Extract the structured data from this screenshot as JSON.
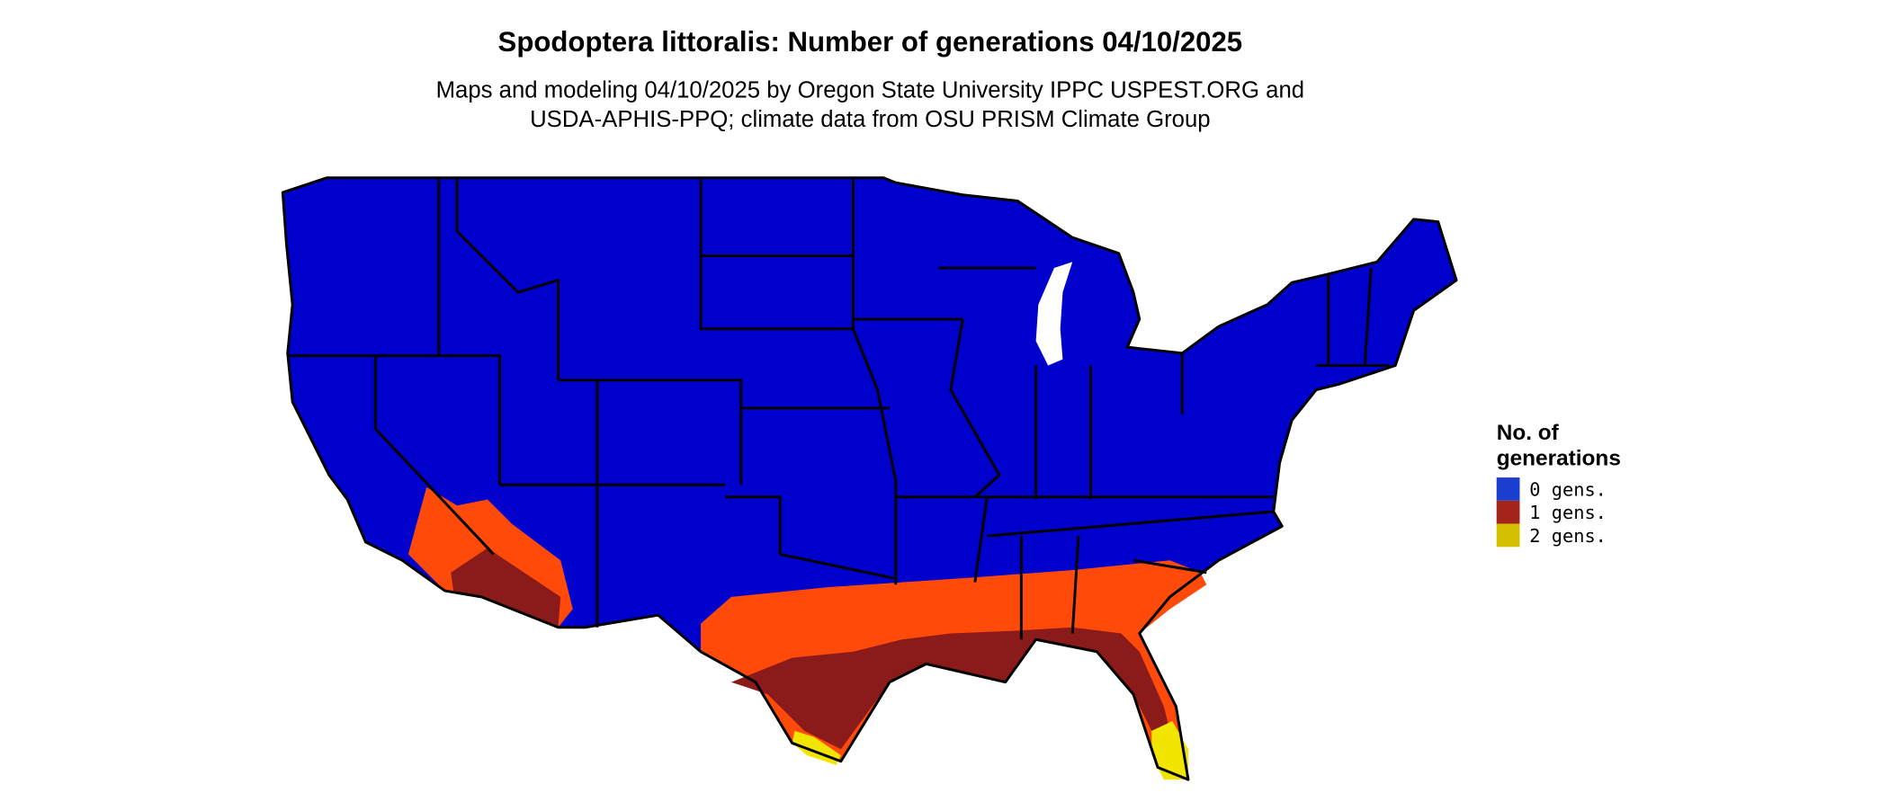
{
  "header": {
    "title": "Spodoptera littoralis: Number of generations 04/10/2025",
    "subtitle": [
      "Maps and modeling 04/10/2025 by Oregon State University IPPC USPEST.ORG and",
      "USDA-APHIS-PPQ; climate data from OSU PRISM Climate Group"
    ]
  },
  "legend": {
    "title": [
      "No. of",
      "generations"
    ],
    "items": [
      {
        "label": "0 gens.",
        "color": "#1a3fd0"
      },
      {
        "label": "1 gens.",
        "color": "#a3241a"
      },
      {
        "label": "2 gens.",
        "color": "#d4bf00"
      }
    ]
  }
}
